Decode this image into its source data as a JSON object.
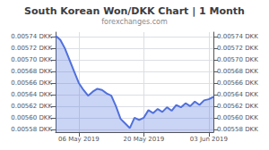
{
  "chart_data": {
    "type": "area",
    "title": "South Korean Won/DKK Chart | 1 Month",
    "subtitle": "forexchanges.com",
    "x": [
      0,
      1,
      2,
      3,
      4,
      5,
      6,
      7,
      8,
      9,
      10,
      11,
      12,
      13,
      14,
      15,
      16,
      17,
      18,
      19,
      20,
      21,
      22,
      23,
      24,
      25,
      26,
      27,
      28,
      29,
      30,
      31,
      32,
      33,
      34
    ],
    "values": [
      0.005742,
      0.005735,
      0.00572,
      0.0057,
      0.00568,
      0.00566,
      0.005648,
      0.005638,
      0.005645,
      0.00565,
      0.005648,
      0.005642,
      0.005638,
      0.00562,
      0.005598,
      0.00559,
      0.005582,
      0.0056,
      0.005596,
      0.0056,
      0.005613,
      0.005608,
      0.005615,
      0.00561,
      0.005618,
      0.005612,
      0.005622,
      0.005618,
      0.005625,
      0.00562,
      0.005628,
      0.005622,
      0.00563,
      0.005632,
      0.005636
    ],
    "xlim": [
      0,
      34
    ],
    "xticks": [
      {
        "value": 5,
        "label": "06 May 2019"
      },
      {
        "value": 19,
        "label": "20 May 2019"
      },
      {
        "value": 33,
        "label": "03 Jun 2019"
      }
    ],
    "ylim": [
      0.005575,
      0.005748
    ],
    "yticks": [
      {
        "value": 0.00558,
        "label": "0.00558 DKK"
      },
      {
        "value": 0.0056,
        "label": "0.00560 DKK"
      },
      {
        "value": 0.00562,
        "label": "0.00562 DKK"
      },
      {
        "value": 0.00564,
        "label": "0.00564 DKK"
      },
      {
        "value": 0.00566,
        "label": "0.00566 DKK"
      },
      {
        "value": 0.00568,
        "label": "0.00568 DKK"
      },
      {
        "value": 0.0057,
        "label": "0.00570 DKK"
      },
      {
        "value": 0.00572,
        "label": "0.00572 DKK"
      },
      {
        "value": 0.00574,
        "label": "0.00574 DKK"
      }
    ],
    "y2lim": [
      0.005575,
      0.005748
    ],
    "y2ticks": [
      {
        "value": 0.00558,
        "label": "0.00558 DKK"
      },
      {
        "value": 0.0056,
        "label": "0.00560 DKK"
      },
      {
        "value": 0.00562,
        "label": "0.00562 DKK"
      },
      {
        "value": 0.00564,
        "label": "0.00564 DKK"
      },
      {
        "value": 0.00566,
        "label": "0.00566 DKK"
      },
      {
        "value": 0.00568,
        "label": "0.00568 DKK"
      },
      {
        "value": 0.0057,
        "label": "0.00570 DKK"
      },
      {
        "value": 0.00572,
        "label": "0.00572 DKK"
      },
      {
        "value": 0.00574,
        "label": "0.00574 DKK"
      }
    ],
    "grid": true
  }
}
